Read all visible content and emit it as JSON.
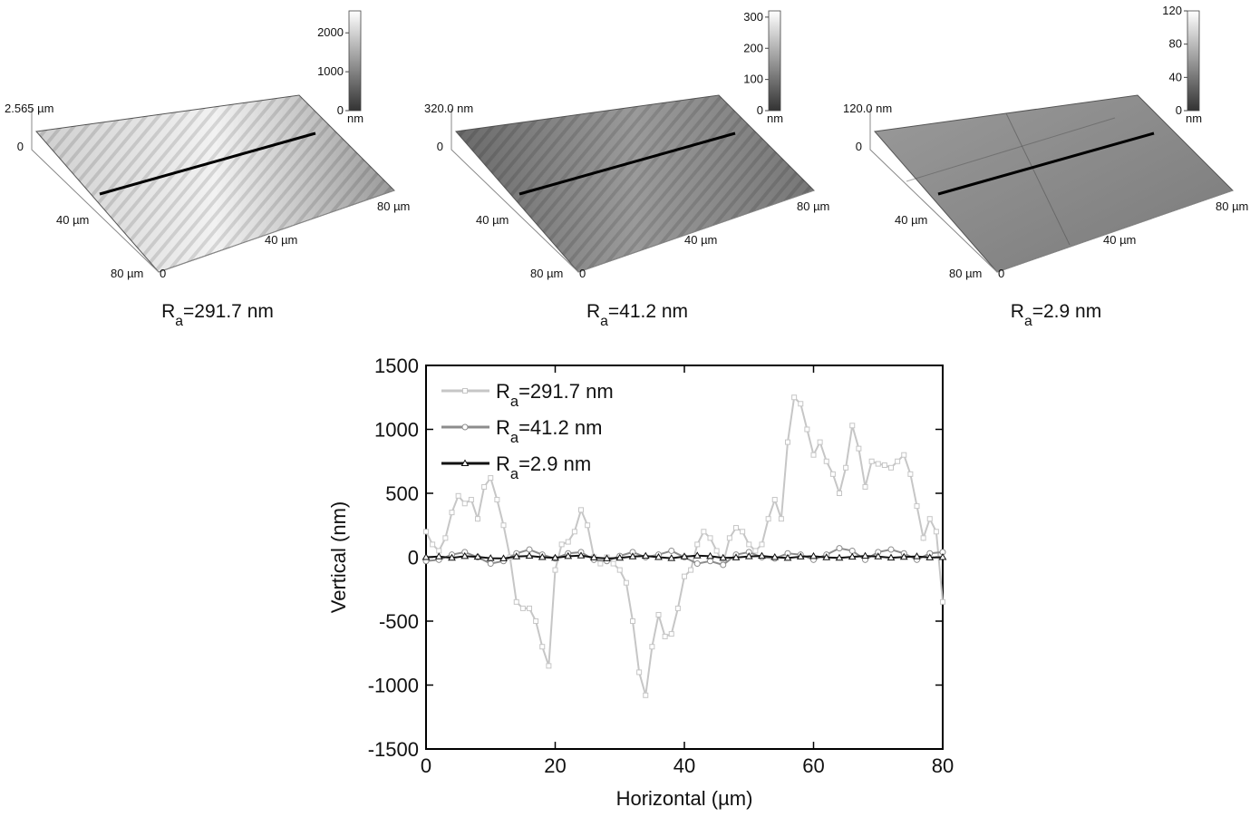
{
  "panels": [
    {
      "labels": [
        "2.565 µm",
        "0",
        "40 µm",
        "80 µm",
        "0",
        "40 µm",
        "80 µm"
      ],
      "colorbar": {
        "ylim": [
          0,
          2565
        ],
        "yticks": [
          0,
          1000,
          2000
        ],
        "unit": "nm"
      },
      "caption": "Ra=291.7 nm"
    },
    {
      "labels": [
        "320.0 nm",
        "0",
        "40 µm",
        "80 µm",
        "0",
        "40 µm",
        "80 µm"
      ],
      "colorbar": {
        "ylim": [
          0,
          320
        ],
        "yticks": [
          0,
          100,
          200,
          300
        ],
        "unit": "nm"
      },
      "caption": "Ra=41.2 nm"
    },
    {
      "labels": [
        "120.0 nm",
        "0",
        "40 µm",
        "80 µm",
        "0",
        "40 µm",
        "80 µm"
      ],
      "colorbar": {
        "ylim": [
          0,
          120
        ],
        "yticks": [
          0,
          40,
          80,
          120
        ],
        "unit": "nm"
      },
      "caption": "Ra=2.9 nm"
    }
  ],
  "chart_data": {
    "type": "line",
    "x_label": "Horizontal (µm)",
    "y_label": "Vertical (nm)",
    "xlim": [
      0,
      80
    ],
    "xticks": [
      0,
      20,
      40,
      60,
      80
    ],
    "ylim": [
      -1500,
      1500
    ],
    "yticks": [
      -1500,
      -1000,
      -500,
      0,
      500,
      1000,
      1500
    ],
    "series": [
      {
        "name": "Ra=291.7 nm",
        "color": "#c6c6c6",
        "marker": "square",
        "x": [
          0,
          1,
          2,
          3,
          4,
          5,
          6,
          7,
          8,
          9,
          10,
          11,
          12,
          13,
          14,
          15,
          16,
          17,
          18,
          19,
          20,
          21,
          22,
          23,
          24,
          25,
          26,
          27,
          28,
          29,
          30,
          31,
          32,
          33,
          34,
          35,
          36,
          37,
          38,
          39,
          40,
          41,
          42,
          43,
          44,
          45,
          46,
          47,
          48,
          49,
          50,
          51,
          52,
          53,
          54,
          55,
          56,
          57,
          58,
          59,
          60,
          61,
          62,
          63,
          64,
          65,
          66,
          67,
          68,
          69,
          70,
          71,
          72,
          73,
          74,
          75,
          76,
          77,
          78,
          79,
          80
        ],
        "values": [
          200,
          100,
          50,
          150,
          350,
          480,
          420,
          450,
          300,
          550,
          620,
          450,
          250,
          0,
          -350,
          -400,
          -400,
          -500,
          -700,
          -850,
          -100,
          100,
          120,
          200,
          370,
          250,
          0,
          -50,
          0,
          -50,
          -100,
          -200,
          -500,
          -900,
          -1080,
          -700,
          -450,
          -620,
          -600,
          -400,
          -150,
          -100,
          100,
          200,
          150,
          50,
          -50,
          150,
          230,
          200,
          100,
          50,
          100,
          300,
          450,
          300,
          900,
          1250,
          1200,
          1000,
          800,
          900,
          750,
          650,
          500,
          700,
          1030,
          850,
          550,
          750,
          730,
          720,
          700,
          750,
          800,
          650,
          400,
          150,
          300,
          200,
          -350
        ]
      },
      {
        "name": "Ra=41.2 nm",
        "color": "#8c8c8c",
        "marker": "circle",
        "x": [
          0,
          2,
          4,
          6,
          8,
          10,
          12,
          14,
          16,
          18,
          20,
          22,
          24,
          26,
          28,
          30,
          32,
          34,
          36,
          38,
          40,
          42,
          44,
          46,
          48,
          50,
          52,
          54,
          56,
          58,
          60,
          62,
          64,
          66,
          68,
          70,
          72,
          74,
          76,
          78,
          80
        ],
        "values": [
          -30,
          -20,
          20,
          40,
          0,
          -50,
          -30,
          30,
          60,
          20,
          -10,
          30,
          40,
          -20,
          -30,
          10,
          40,
          0,
          20,
          50,
          0,
          -50,
          -30,
          -60,
          20,
          40,
          0,
          -10,
          30,
          20,
          -20,
          20,
          70,
          50,
          -20,
          40,
          60,
          30,
          -20,
          30,
          40
        ]
      },
      {
        "name": "Ra=2.9 nm",
        "color": "#111111",
        "marker": "triangle",
        "x": [
          0,
          2,
          4,
          6,
          8,
          10,
          12,
          14,
          16,
          18,
          20,
          22,
          24,
          26,
          28,
          30,
          32,
          34,
          36,
          38,
          40,
          42,
          44,
          46,
          48,
          50,
          52,
          54,
          56,
          58,
          60,
          62,
          64,
          66,
          68,
          70,
          72,
          74,
          76,
          78,
          80
        ],
        "values": [
          0,
          5,
          -5,
          8,
          3,
          -8,
          -10,
          5,
          10,
          0,
          -5,
          8,
          12,
          -3,
          -10,
          -5,
          5,
          10,
          0,
          -8,
          5,
          12,
          8,
          -5,
          -3,
          6,
          10,
          0,
          -6,
          4,
          8,
          -2,
          -5,
          3,
          10,
          5,
          -4,
          2,
          6,
          -3,
          0
        ]
      }
    ]
  }
}
